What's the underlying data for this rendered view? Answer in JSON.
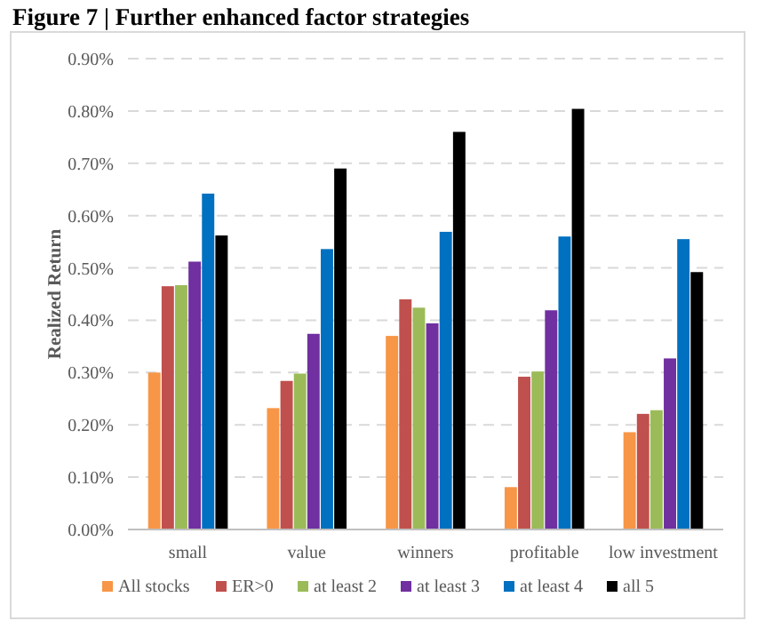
{
  "chart_data": {
    "type": "bar",
    "title": "Figure 7 | Further enhanced factor strategies",
    "ylabel": "Realized Return",
    "categories": [
      "small",
      "value",
      "winners",
      "profitable",
      "low investment"
    ],
    "series": [
      {
        "name": "All stocks",
        "color": "#f79646",
        "values": [
          0.3,
          0.232,
          0.37,
          0.081,
          0.186
        ]
      },
      {
        "name": "ER>0",
        "color": "#c0504d",
        "values": [
          0.465,
          0.284,
          0.44,
          0.292,
          0.221
        ]
      },
      {
        "name": "at least 2",
        "color": "#9bbb59",
        "values": [
          0.467,
          0.298,
          0.424,
          0.302,
          0.228
        ]
      },
      {
        "name": "at least 3",
        "color": "#7030a0",
        "values": [
          0.512,
          0.374,
          0.394,
          0.419,
          0.327
        ]
      },
      {
        "name": "at least 4",
        "color": "#0070c0",
        "values": [
          0.642,
          0.536,
          0.569,
          0.56,
          0.555
        ]
      },
      {
        "name": "all 5",
        "color": "#000000",
        "values": [
          0.562,
          0.69,
          0.76,
          0.804,
          0.492
        ]
      }
    ],
    "ylim": [
      0,
      0.9
    ],
    "yticks": [
      {
        "value": 0,
        "label": "0.00%"
      },
      {
        "value": 0.1,
        "label": "0.10%"
      },
      {
        "value": 0.2,
        "label": "0.20%"
      },
      {
        "value": 0.3,
        "label": "0.30%"
      },
      {
        "value": 0.4,
        "label": "0.40%"
      },
      {
        "value": 0.5,
        "label": "0.50%"
      },
      {
        "value": 0.6,
        "label": "0.60%"
      },
      {
        "value": 0.7,
        "label": "0.70%"
      },
      {
        "value": 0.8,
        "label": "0.80%"
      },
      {
        "value": 0.9,
        "label": "0.90%"
      }
    ],
    "grid": "y",
    "legend": "bottom"
  }
}
